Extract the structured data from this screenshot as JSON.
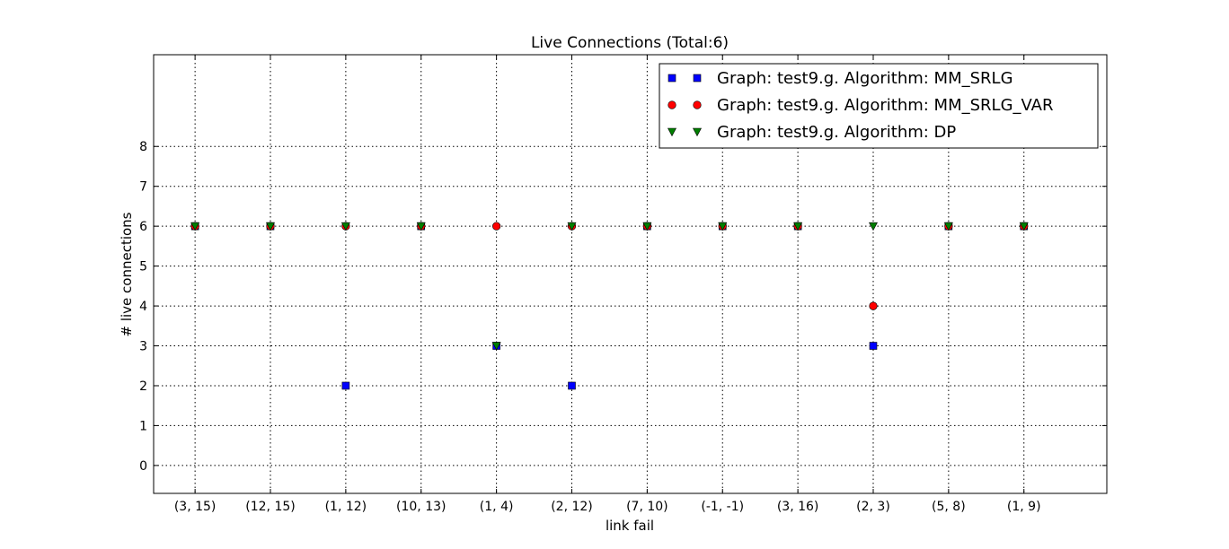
{
  "chart_data": {
    "type": "scatter",
    "title": "Live Connections (Total:6)",
    "xlabel": "link fail",
    "ylabel": "# live connections",
    "categories": [
      "(3, 15)",
      "(12, 15)",
      "(1, 12)",
      "(10, 13)",
      "(1, 4)",
      "(2, 12)",
      "(7, 10)",
      "(-1, -1)",
      "(3, 16)",
      "(2, 3)",
      "(5, 8)",
      "(1, 9)"
    ],
    "yticks": [
      0,
      1,
      2,
      3,
      4,
      5,
      6,
      7,
      8
    ],
    "ylim": [
      -0.7,
      10.3
    ],
    "xlim": [
      -0.55,
      12.1
    ],
    "grid": true,
    "legend_position": "top-right",
    "series": [
      {
        "name": "Graph: test9.g. Algorithm: MM_SRLG",
        "marker": "square",
        "color": "#0000ff",
        "values": [
          6,
          6,
          2,
          6,
          3,
          2,
          6,
          6,
          6,
          3,
          6,
          6
        ]
      },
      {
        "name": "Graph: test9.g. Algorithm: MM_SRLG_VAR",
        "marker": "circle",
        "color": "#ff0000",
        "values": [
          6,
          6,
          6,
          6,
          6,
          6,
          6,
          6,
          6,
          4,
          6,
          6
        ]
      },
      {
        "name": "Graph: test9.g. Algorithm: DP",
        "marker": "triangle-down",
        "color": "#007f00",
        "values": [
          6,
          6,
          6,
          6,
          3,
          6,
          6,
          6,
          6,
          6,
          6,
          6
        ]
      }
    ]
  }
}
